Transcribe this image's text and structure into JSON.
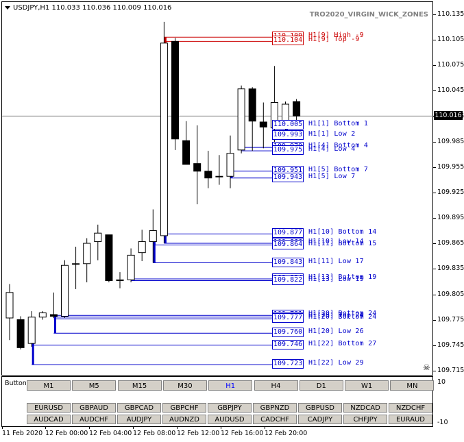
{
  "header": {
    "symbol_info": "USDJPY,H1  110.033 110.036 110.009 110.016",
    "indicator_title": "TRO2020_VIRGIN_WICK_ZONES"
  },
  "price_scale": {
    "ticks": [
      "110.135",
      "110.105",
      "110.075",
      "110.045",
      "110.015",
      "109.985",
      "109.955",
      "109.925",
      "109.895",
      "109.865",
      "109.835",
      "109.805",
      "109.775",
      "109.745",
      "109.715"
    ],
    "current_price": "110.016",
    "min": 109.709,
    "max": 110.145
  },
  "chart_data": {
    "type": "candlestick",
    "symbol": "USDJPY",
    "timeframe": "H1",
    "candles": [
      {
        "o": 109.778,
        "h": 109.818,
        "l": 109.752,
        "c": 109.808
      },
      {
        "o": 109.776,
        "h": 109.78,
        "l": 109.741,
        "c": 109.743
      },
      {
        "o": 109.748,
        "h": 109.786,
        "l": 109.744,
        "c": 109.779
      },
      {
        "o": 109.779,
        "h": 109.786,
        "l": 109.776,
        "c": 109.784
      },
      {
        "o": 109.782,
        "h": 109.808,
        "l": 109.778,
        "c": 109.78
      },
      {
        "o": 109.78,
        "h": 109.846,
        "l": 109.778,
        "c": 109.84
      },
      {
        "o": 109.842,
        "h": 109.862,
        "l": 109.812,
        "c": 109.842
      },
      {
        "o": 109.842,
        "h": 109.872,
        "l": 109.82,
        "c": 109.866
      },
      {
        "o": 109.868,
        "h": 109.888,
        "l": 109.846,
        "c": 109.878
      },
      {
        "o": 109.876,
        "h": 109.876,
        "l": 109.82,
        "c": 109.822
      },
      {
        "o": 109.822,
        "h": 109.832,
        "l": 109.813,
        "c": 109.823
      },
      {
        "o": 109.823,
        "h": 109.86,
        "l": 109.82,
        "c": 109.852
      },
      {
        "o": 109.855,
        "h": 109.882,
        "l": 109.845,
        "c": 109.868
      },
      {
        "o": 109.868,
        "h": 109.906,
        "l": 109.843,
        "c": 109.881
      },
      {
        "o": 109.875,
        "h": 110.127,
        "l": 109.866,
        "c": 110.102
      },
      {
        "o": 110.104,
        "h": 110.108,
        "l": 109.976,
        "c": 109.989
      },
      {
        "o": 109.987,
        "h": 110.01,
        "l": 109.96,
        "c": 109.959
      },
      {
        "o": 109.96,
        "h": 110.005,
        "l": 109.912,
        "c": 109.951
      },
      {
        "o": 109.951,
        "h": 109.975,
        "l": 109.931,
        "c": 109.943
      },
      {
        "o": 109.945,
        "h": 109.97,
        "l": 109.935,
        "c": 109.945
      },
      {
        "o": 109.945,
        "h": 109.993,
        "l": 109.931,
        "c": 109.972
      },
      {
        "o": 109.976,
        "h": 110.052,
        "l": 109.972,
        "c": 110.048
      },
      {
        "o": 110.048,
        "h": 110.05,
        "l": 109.975,
        "c": 110.01
      },
      {
        "o": 110.009,
        "h": 110.032,
        "l": 109.978,
        "c": 110.003
      },
      {
        "o": 110.002,
        "h": 110.075,
        "l": 109.981,
        "c": 110.032
      },
      {
        "o": 110.005,
        "h": 110.033,
        "l": 109.993,
        "c": 110.03
      },
      {
        "o": 110.033,
        "h": 110.036,
        "l": 110.009,
        "c": 110.016
      }
    ],
    "zones": [
      {
        "price": 110.109,
        "label": "H1[9] High -9",
        "color": "#cc0000",
        "start": 14
      },
      {
        "price": 110.104,
        "label": "H1[9] Top -9",
        "color": "#cc0000",
        "start": 14
      },
      {
        "price": 110.005,
        "label": "H1[1] Bottom 1",
        "color": "#0000cc",
        "start": 25
      },
      {
        "price": 109.993,
        "label": "H1[1] Low 2",
        "color": "#0000cc",
        "start": 25
      },
      {
        "price": 109.979,
        "label": "H1[4] Bottom 4",
        "color": "#0000cc",
        "start": 21
      },
      {
        "price": 109.975,
        "label": "H1[4] Low 4",
        "color": "#0000cc",
        "start": 21
      },
      {
        "price": 109.951,
        "label": "H1[5] Bottom 7",
        "color": "#0000cc",
        "start": 20
      },
      {
        "price": 109.943,
        "label": "H1[5] Low 7",
        "color": "#0000cc",
        "start": 20
      },
      {
        "price": 109.877,
        "label": "H1[10] Bottom 14",
        "color": "#0000cc",
        "start": 14
      },
      {
        "price": 109.866,
        "label": "H1[10] Low 14",
        "color": "#0000cc",
        "start": 14
      },
      {
        "price": 109.864,
        "label": "H1[11] Bottom 15",
        "color": "#0000cc",
        "start": 13
      },
      {
        "price": 109.843,
        "label": "H1[11] Low 17",
        "color": "#0000cc",
        "start": 13
      },
      {
        "price": 109.824,
        "label": "H1[13] Bottom 19",
        "color": "#0000cc",
        "start": 11
      },
      {
        "price": 109.822,
        "label": "H1[13] Low 19",
        "color": "#0000cc",
        "start": 11
      },
      {
        "price": 109.781,
        "label": "H1[20] Bottom 24",
        "color": "#0000cc",
        "start": 4
      },
      {
        "price": 109.779,
        "label": "H1[20] Top 24",
        "color": "#0000cc",
        "start": 4
      },
      {
        "price": 109.777,
        "label": "H1[20] Bottom 24",
        "color": "#0000cc",
        "start": 4
      },
      {
        "price": 109.76,
        "label": "H1[20] Low 26",
        "color": "#0000cc",
        "start": 4
      },
      {
        "price": 109.746,
        "label": "H1[22] Bottom 27",
        "color": "#0000cc",
        "start": 2
      },
      {
        "price": 109.723,
        "label": "H1[22] Low 29",
        "color": "#0000cc",
        "start": 2
      }
    ]
  },
  "zone_boxes": [
    {
      "text": "110.109",
      "color": "#cc0000"
    },
    {
      "text": "110.104",
      "color": "#cc0000"
    },
    {
      "text": "110.005",
      "color": "#0000cc"
    },
    {
      "text": "109.993",
      "color": "#0000cc"
    },
    {
      "text": "109.979",
      "color": "#0000cc"
    },
    {
      "text": "109.975",
      "color": "#0000cc"
    },
    {
      "text": "109.951",
      "color": "#0000cc"
    },
    {
      "text": "109.943",
      "color": "#0000cc"
    },
    {
      "text": "109.877",
      "color": "#0000cc"
    },
    {
      "text": "109.866",
      "color": "#0000cc"
    },
    {
      "text": "109.864",
      "color": "#0000cc"
    },
    {
      "text": "109.843",
      "color": "#0000cc"
    },
    {
      "text": "109.824",
      "color": "#0000cc"
    },
    {
      "text": "109.822",
      "color": "#0000cc"
    },
    {
      "text": "109.781",
      "color": "#0000cc"
    },
    {
      "text": "109.779",
      "color": "#0000cc"
    },
    {
      "text": "109.777",
      "color": "#0000cc"
    },
    {
      "text": "109.760",
      "color": "#0000cc"
    },
    {
      "text": "109.746",
      "color": "#0000cc"
    },
    {
      "text": "109.723",
      "color": "#0000cc"
    }
  ],
  "panel": {
    "title": "Buttons",
    "scale_top": "10",
    "scale_bottom": "-10",
    "timeframes": [
      "M1",
      "M5",
      "M15",
      "M30",
      "H1",
      "H4",
      "D1",
      "W1",
      "MN"
    ],
    "active_timeframe": "H1",
    "pairs_row1": [
      "EURUSD",
      "GBPAUD",
      "GBPCAD",
      "GBPCHF",
      "GBPJPY",
      "GBPNZD",
      "GBPUSD",
      "NZDCAD",
      "NZDCHF"
    ],
    "pairs_row2": [
      "AUDCAD",
      "AUDCHF",
      "AUDJPY",
      "AUDNZD",
      "AUDUSD",
      "CADCHF",
      "CADJPY",
      "CHFJPY",
      "EURAUD"
    ]
  },
  "time_axis": [
    "11 Feb 2020",
    "12 Feb 00:00",
    "12 Feb 04:00",
    "12 Feb 08:00",
    "12 Feb 12:00",
    "12 Feb 16:00",
    "12 Feb 20:00"
  ],
  "colors": {
    "bull": "#ffffff",
    "bear": "#000000",
    "red_zone": "#cc0000",
    "blue_zone": "#0000cc",
    "grid_line": "#808080"
  }
}
